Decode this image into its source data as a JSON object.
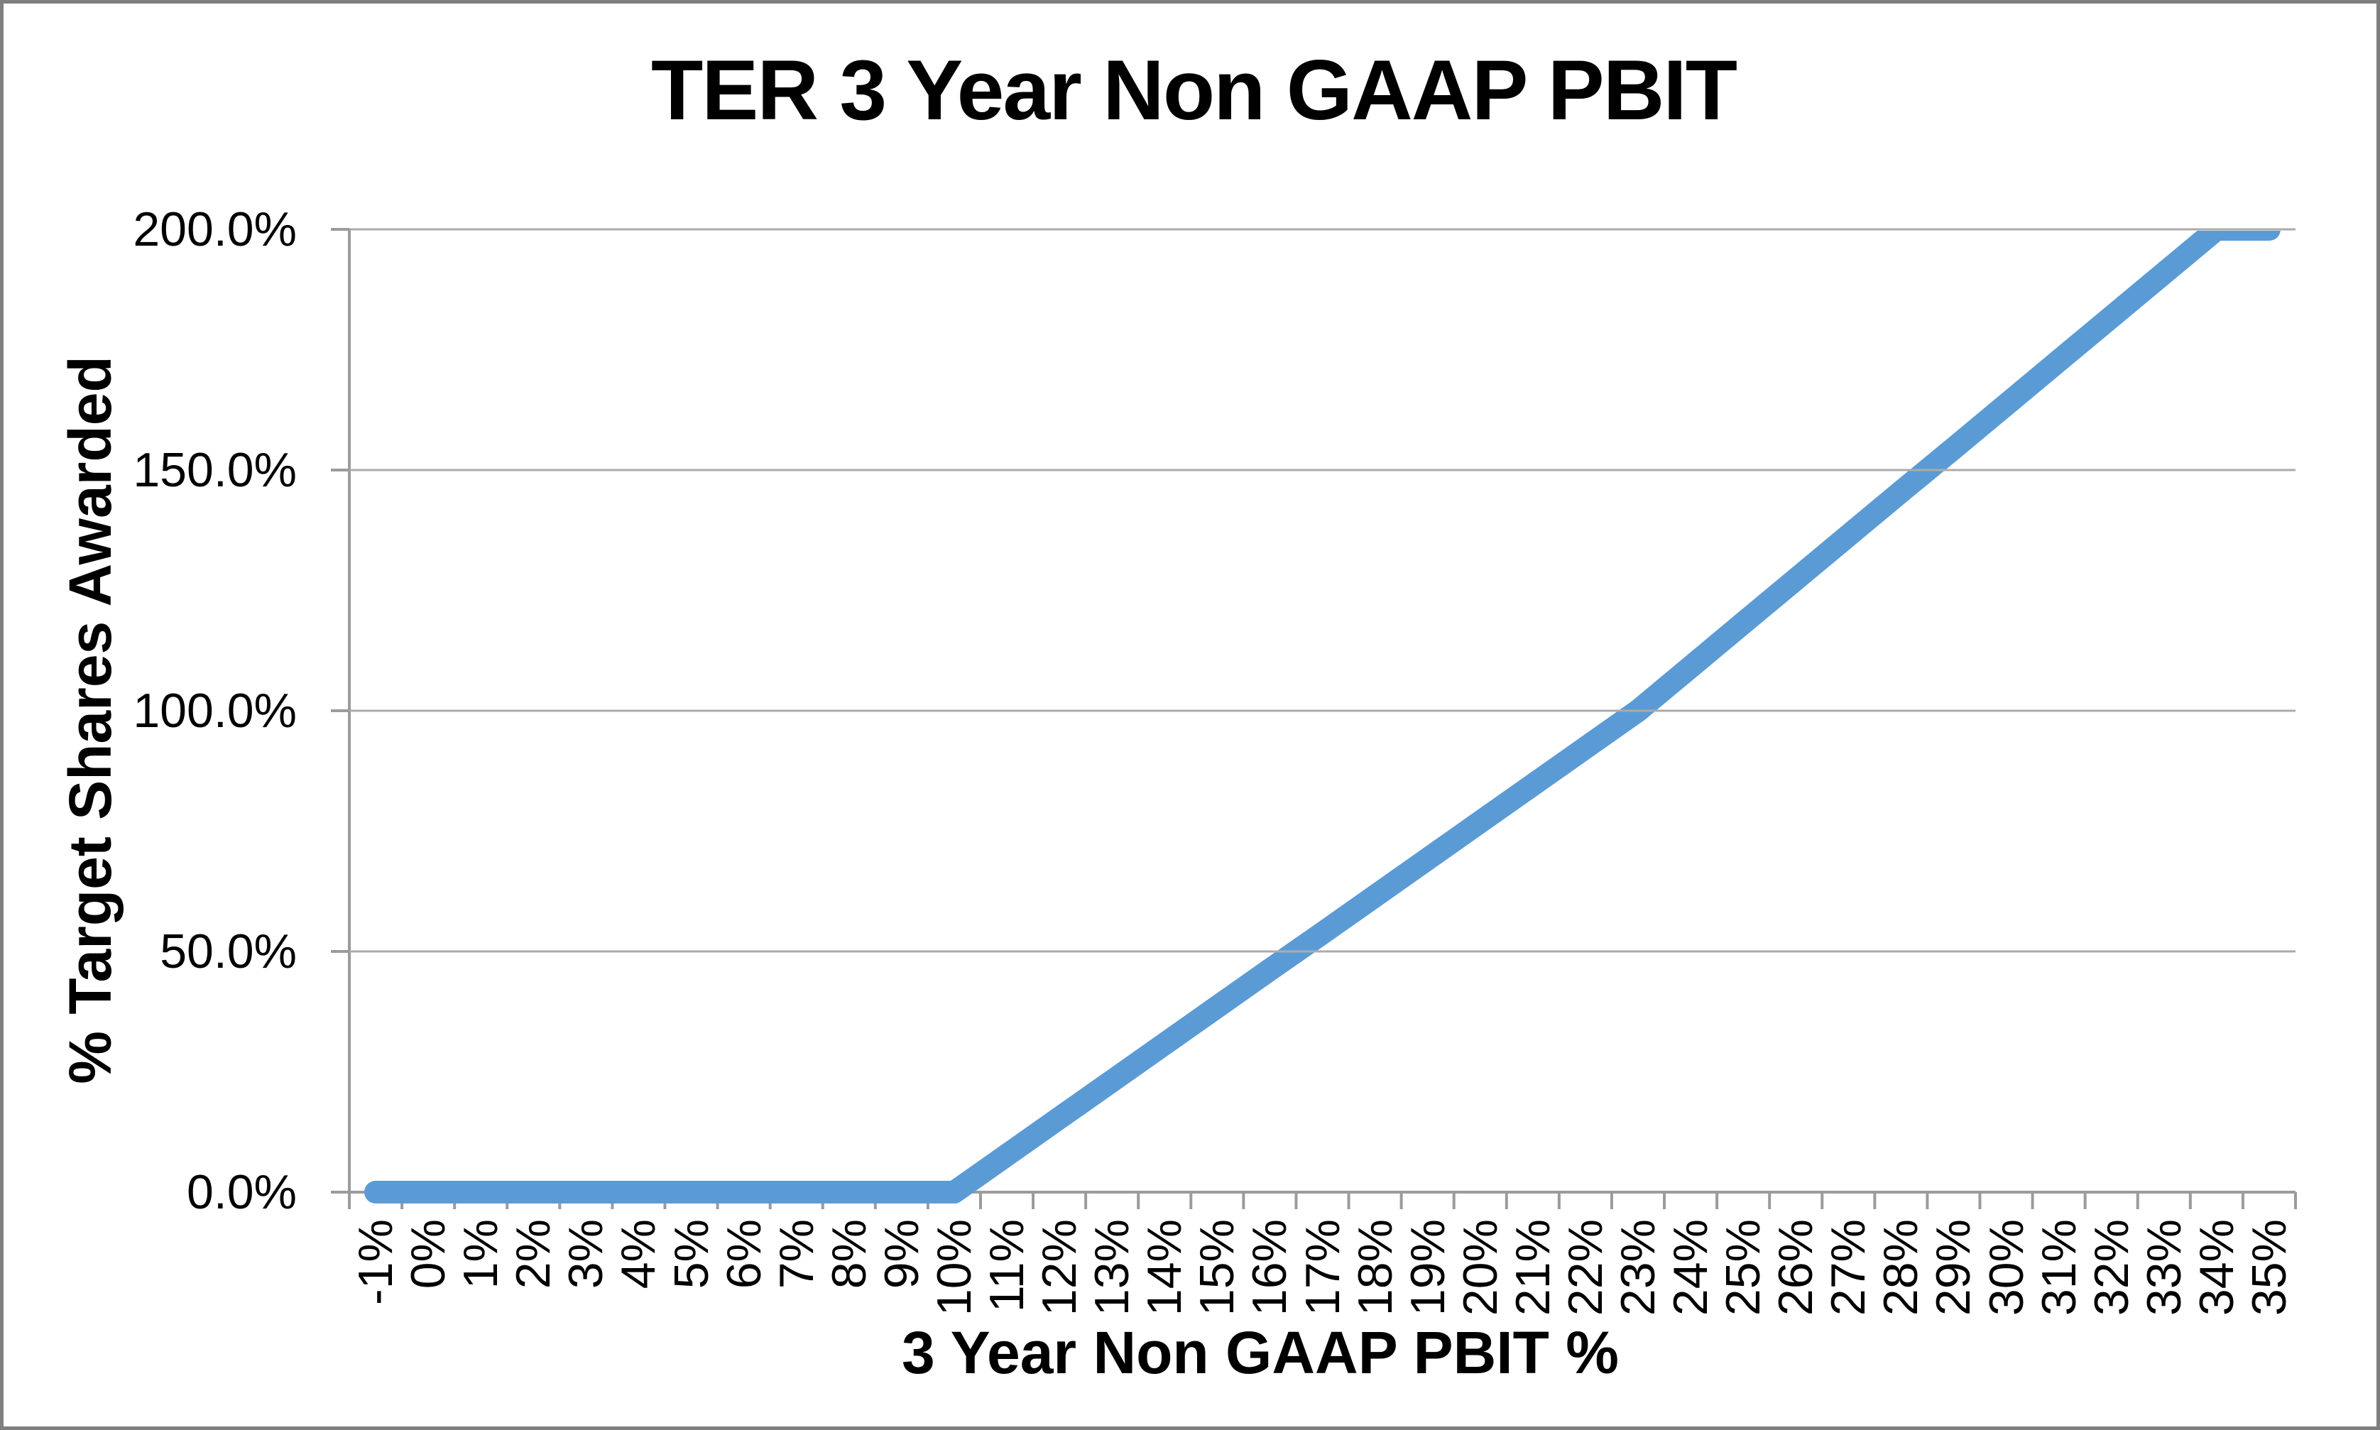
{
  "chart": {
    "title": "TER 3 Year Non GAAP PBIT",
    "x_axis_title": "3 Year Non GAAP PBIT %",
    "y_axis_title": "% Target Shares Awarded",
    "y_tick_labels": [
      "200.0%",
      "150.0%",
      "100.0%",
      "50.0%",
      "0.0%"
    ],
    "line_color": "#5B9BD5",
    "gridline_color": "#ABABAB",
    "axis_color": "#9B9B9B"
  },
  "chart_data": {
    "type": "line",
    "title": "TER 3 Year Non GAAP PBIT",
    "xlabel": "3 Year Non GAAP PBIT %",
    "ylabel": "% Target Shares Awarded",
    "categories": [
      "-1%",
      "0%",
      "1%",
      "2%",
      "3%",
      "4%",
      "5%",
      "6%",
      "7%",
      "8%",
      "9%",
      "10%",
      "11%",
      "12%",
      "13%",
      "14%",
      "15%",
      "16%",
      "17%",
      "18%",
      "19%",
      "20%",
      "21%",
      "22%",
      "23%",
      "24%",
      "25%",
      "26%",
      "27%",
      "28%",
      "29%",
      "30%",
      "31%",
      "32%",
      "33%",
      "34%",
      "35%"
    ],
    "series": [
      {
        "name": "% Target Shares Awarded",
        "values": [
          0,
          0,
          0,
          0,
          0,
          0,
          0,
          0,
          0,
          0,
          0,
          0,
          7.7,
          15.4,
          23.1,
          30.8,
          38.5,
          46.2,
          53.8,
          61.5,
          69.2,
          76.9,
          84.6,
          92.3,
          100,
          109.1,
          118.2,
          127.3,
          136.4,
          145.5,
          154.5,
          163.6,
          172.7,
          181.8,
          190.9,
          200,
          200
        ]
      }
    ],
    "ylim": [
      0,
      200
    ],
    "y_ticks": [
      0,
      50,
      100,
      150,
      200
    ],
    "grid": "horizontal",
    "legend": "none",
    "annotations": "Payout curve: 0% below 10% PBIT, 100% at 23% PBIT, capped at 200% from 34% PBIT"
  }
}
